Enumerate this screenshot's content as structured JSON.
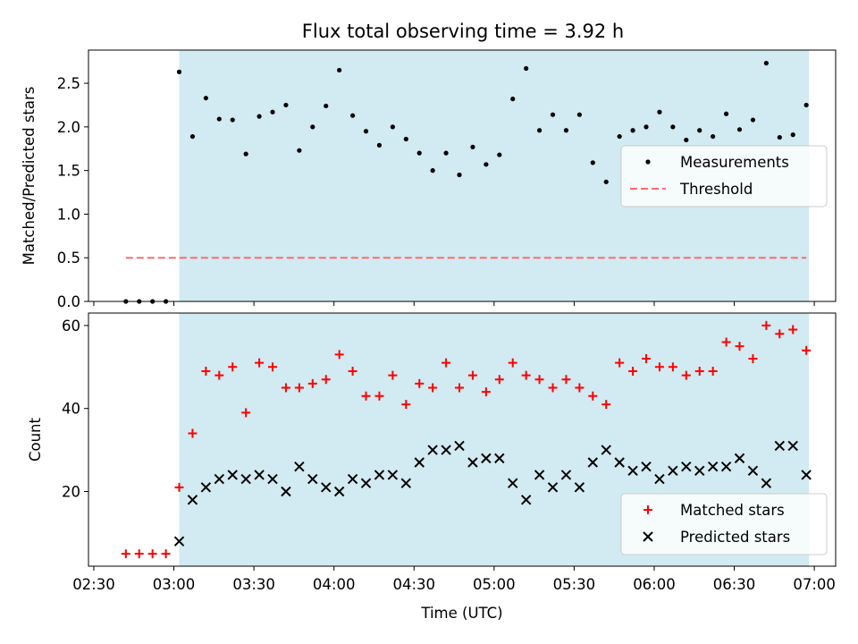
{
  "title": "Flux total observing time = 3.92 h",
  "chart_data": [
    {
      "type": "scatter",
      "ylabel": "Matched/Predicted stars",
      "xlim": [
        "02:28",
        "07:08"
      ],
      "ylim": [
        0,
        2.88
      ],
      "yticks": [
        "0.0",
        "0.5",
        "1.0",
        "1.5",
        "2.0",
        "2.5"
      ],
      "shaded_span": [
        "03:02",
        "06:58"
      ],
      "shaded_color": "#add8e6",
      "legend_position": "center-right",
      "series": [
        {
          "name": "Measurements",
          "marker": "dot",
          "color": "#000000",
          "x": [
            "02:42",
            "02:47",
            "02:52",
            "02:57",
            "03:02",
            "03:07",
            "03:12",
            "03:17",
            "03:22",
            "03:27",
            "03:32",
            "03:37",
            "03:42",
            "03:47",
            "03:52",
            "03:57",
            "04:02",
            "04:07",
            "04:12",
            "04:17",
            "04:22",
            "04:27",
            "04:32",
            "04:37",
            "04:42",
            "04:47",
            "04:52",
            "04:57",
            "05:02",
            "05:07",
            "05:12",
            "05:17",
            "05:22",
            "05:27",
            "05:32",
            "05:37",
            "05:42",
            "05:47",
            "05:52",
            "05:57",
            "06:02",
            "06:07",
            "06:12",
            "06:17",
            "06:22",
            "06:27",
            "06:32",
            "06:37",
            "06:42",
            "06:47",
            "06:52",
            "06:57"
          ],
          "y": [
            0,
            0,
            0,
            0,
            2.63,
            1.89,
            2.33,
            2.09,
            2.08,
            1.69,
            2.12,
            2.17,
            2.25,
            1.73,
            2.0,
            2.24,
            2.65,
            2.13,
            1.95,
            1.79,
            2.0,
            1.86,
            1.7,
            1.5,
            1.7,
            1.45,
            1.77,
            1.57,
            1.68,
            2.32,
            2.67,
            1.96,
            2.14,
            1.96,
            2.14,
            1.59,
            1.37,
            1.89,
            1.96,
            2.0,
            2.17,
            2.0,
            1.85,
            1.96,
            1.89,
            2.15,
            1.97,
            2.08,
            2.73,
            1.88,
            1.91,
            2.25
          ]
        },
        {
          "name": "Threshold",
          "marker": "dashed-line",
          "color": "#ff6b6b",
          "x": [
            "02:42",
            "06:57"
          ],
          "y": [
            0.5,
            0.5
          ]
        }
      ]
    },
    {
      "type": "scatter",
      "xlabel": "Time (UTC)",
      "ylabel": "Count",
      "xlim": [
        "02:28",
        "07:08"
      ],
      "ylim": [
        2,
        63
      ],
      "xticks": [
        "02:30",
        "03:00",
        "03:30",
        "04:00",
        "04:30",
        "05:00",
        "05:30",
        "06:00",
        "06:30",
        "07:00"
      ],
      "yticks": [
        "20",
        "40",
        "60"
      ],
      "shaded_span": [
        "03:02",
        "06:58"
      ],
      "shaded_color": "#add8e6",
      "legend_position": "lower-right",
      "series": [
        {
          "name": "Matched stars",
          "marker": "plus",
          "color": "#ff0000",
          "x": [
            "02:42",
            "02:47",
            "02:52",
            "02:57",
            "03:02",
            "03:07",
            "03:12",
            "03:17",
            "03:22",
            "03:27",
            "03:32",
            "03:37",
            "03:42",
            "03:47",
            "03:52",
            "03:57",
            "04:02",
            "04:07",
            "04:12",
            "04:17",
            "04:22",
            "04:27",
            "04:32",
            "04:37",
            "04:42",
            "04:47",
            "04:52",
            "04:57",
            "05:02",
            "05:07",
            "05:12",
            "05:17",
            "05:22",
            "05:27",
            "05:32",
            "05:37",
            "05:42",
            "05:47",
            "05:52",
            "05:57",
            "06:02",
            "06:07",
            "06:12",
            "06:17",
            "06:22",
            "06:27",
            "06:32",
            "06:37",
            "06:42",
            "06:47",
            "06:52",
            "06:57"
          ],
          "y": [
            5,
            5,
            5,
            5,
            21,
            34,
            49,
            48,
            50,
            39,
            51,
            50,
            45,
            45,
            46,
            47,
            53,
            49,
            43,
            43,
            48,
            41,
            46,
            45,
            51,
            45,
            48,
            44,
            47,
            51,
            48,
            47,
            45,
            47,
            45,
            43,
            41,
            51,
            49,
            52,
            50,
            50,
            48,
            49,
            49,
            56,
            55,
            52,
            60,
            58,
            59,
            54
          ]
        },
        {
          "name": "Predicted stars",
          "marker": "x",
          "color": "#000000",
          "x": [
            "03:02",
            "03:07",
            "03:12",
            "03:17",
            "03:22",
            "03:27",
            "03:32",
            "03:37",
            "03:42",
            "03:47",
            "03:52",
            "03:57",
            "04:02",
            "04:07",
            "04:12",
            "04:17",
            "04:22",
            "04:27",
            "04:32",
            "04:37",
            "04:42",
            "04:47",
            "04:52",
            "04:57",
            "05:02",
            "05:07",
            "05:12",
            "05:17",
            "05:22",
            "05:27",
            "05:32",
            "05:37",
            "05:42",
            "05:47",
            "05:52",
            "05:57",
            "06:02",
            "06:07",
            "06:12",
            "06:17",
            "06:22",
            "06:27",
            "06:32",
            "06:37",
            "06:42",
            "06:47",
            "06:52",
            "06:57"
          ],
          "y": [
            8,
            18,
            21,
            23,
            24,
            23,
            24,
            23,
            20,
            26,
            23,
            21,
            20,
            23,
            22,
            24,
            24,
            22,
            27,
            30,
            30,
            31,
            27,
            28,
            28,
            22,
            18,
            24,
            21,
            24,
            21,
            27,
            30,
            27,
            25,
            26,
            23,
            25,
            26,
            25,
            26,
            26,
            28,
            25,
            22,
            31,
            31,
            24
          ]
        }
      ]
    }
  ]
}
